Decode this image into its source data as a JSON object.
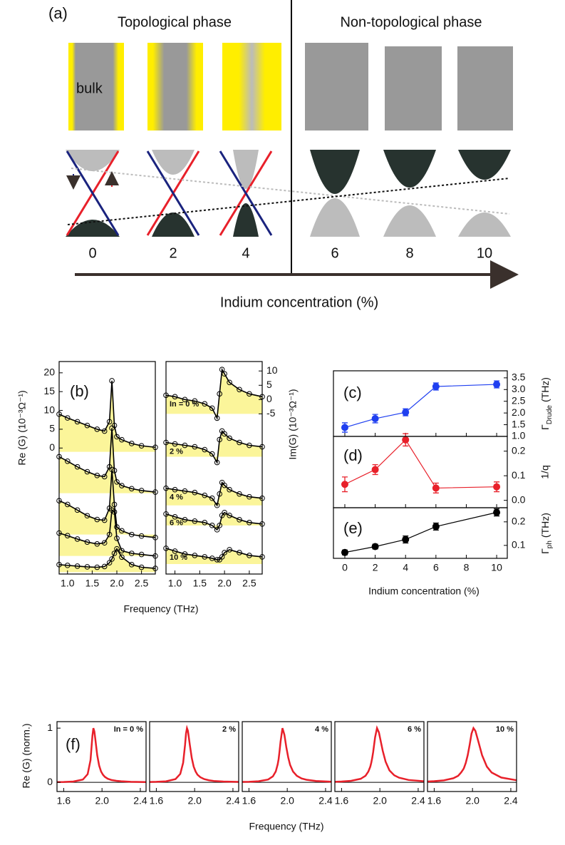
{
  "panel_a": {
    "label": "(a)",
    "left_title": "Topological phase",
    "right_title": "Non-topological phase",
    "bulk_label": "bulk",
    "concentrations": [
      "0",
      "2",
      "4",
      "6",
      "8",
      "10"
    ],
    "axis_label": "Indium concentration (%)"
  },
  "chart_data": [
    {
      "type": "line",
      "label": "(b)",
      "ylabel": "Re (G) (10⁻³Ω⁻¹)",
      "xlabel": "Frequency (THz)",
      "marker": "open-circle",
      "fill_color": "#fbf59a",
      "x": [
        0.83,
        1.0,
        1.2,
        1.4,
        1.6,
        1.75,
        1.85,
        1.9,
        1.95,
        2.0,
        2.1,
        2.3,
        2.5,
        2.78
      ],
      "series": [
        {
          "color": "#000000",
          "fill_to": -1,
          "values": [
            9,
            8,
            7,
            6,
            5,
            4.5,
            7,
            17.9,
            6,
            3,
            2.2,
            1.2,
            0.6,
            0.2
          ]
        },
        {
          "color": "#000000",
          "fill_to": -12,
          "values": [
            -2.3,
            -3.5,
            -5,
            -6.3,
            -7.3,
            -7.6,
            -5,
            5.3,
            -6,
            -9,
            -10,
            -10.8,
            -11.3,
            -11.7
          ]
        },
        {
          "color": "#000000",
          "fill_to": -23,
          "values": [
            -14,
            -15,
            -16.5,
            -18,
            -19,
            -19.2,
            -16,
            -5.7,
            -15,
            -21,
            -22,
            -23,
            -23.4,
            -23.8
          ]
        },
        {
          "color": "#000000",
          "fill_to": -28.7,
          "values": [
            -22.6,
            -23.3,
            -24.2,
            -25,
            -25.5,
            -25.2,
            -23,
            -16.5,
            -17,
            -24,
            -27.3,
            -28,
            -28.3,
            -28.7
          ]
        },
        {
          "color": "#000000",
          "fill_to": -33,
          "values": [
            -31,
            -31.2,
            -31.4,
            -31.6,
            -31.7,
            -31.5,
            -30.5,
            -29.5,
            -28,
            -26.8,
            -29,
            -31,
            -31.7,
            -32
          ]
        }
      ],
      "xlim": [
        0.83,
        2.78
      ],
      "ylim": [
        -33.5,
        23
      ],
      "xticks": [
        {
          "value": 1,
          "label": "1.0"
        },
        1.5,
        {
          "value": 2,
          "label": "2.0"
        },
        2.5
      ],
      "yticks": [
        0,
        5,
        10,
        15,
        20
      ]
    },
    {
      "type": "line",
      "ylabel": "Im(G) (10⁻³Ω⁻¹)",
      "marker": "open-circle",
      "fill_color": "#fbf59a",
      "x": [
        0.82,
        1.0,
        1.2,
        1.4,
        1.6,
        1.75,
        1.85,
        1.9,
        1.95,
        2.0,
        2.1,
        2.3,
        2.5,
        2.76
      ],
      "series": [
        {
          "name": "In = 0 %",
          "color": "#000000",
          "fill_to": -5,
          "values": [
            1.5,
            1,
            0,
            -0.5,
            -1.5,
            -3,
            -6.5,
            2,
            10.5,
            9,
            6,
            3.5,
            2,
            1
          ]
        },
        {
          "name": "2 %",
          "color": "#000000",
          "fill_to": -20,
          "values": [
            -15,
            -15.5,
            -16,
            -16.5,
            -17.5,
            -19,
            -22,
            -14,
            -11,
            -12,
            -13.5,
            -15,
            -16,
            -16.5
          ]
        },
        {
          "name": "4 %",
          "color": "#000000",
          "fill_to": -37,
          "values": [
            -31,
            -31.5,
            -32,
            -32.5,
            -33.5,
            -34.5,
            -37,
            -33,
            -29,
            -30,
            -31.5,
            -33,
            -34,
            -34.5
          ]
        },
        {
          "name": "6 %",
          "color": "#000000",
          "fill_to": -44,
          "values": [
            -40,
            -41,
            -42,
            -42.5,
            -43,
            -44,
            -45.5,
            -44,
            -40.5,
            -39.5,
            -40.5,
            -42,
            -43,
            -43.5
          ]
        },
        {
          "name": "10 %",
          "color": "#000000",
          "fill_to": -57.5,
          "values": [
            -52,
            -53,
            -54,
            -54.5,
            -55,
            -55.5,
            -56,
            -56,
            -55,
            -53.5,
            -52.5,
            -53.5,
            -54.5,
            -55
          ]
        }
      ],
      "xlim": [
        0.82,
        2.76
      ],
      "ylim": [
        -61,
        13.3
      ],
      "xticks": [
        {
          "value": 1,
          "label": "1.0"
        },
        1.5,
        {
          "value": 2,
          "label": "2.0"
        },
        2.5
      ],
      "yticks": [
        -5,
        0,
        5,
        10
      ]
    },
    {
      "type": "line",
      "label": "(c)",
      "ylabel": {
        "symbol": "Γ",
        "sub": "Drude",
        "unit": "(THz)"
      },
      "marker": "circle",
      "x": [
        0,
        2,
        4,
        6,
        10
      ],
      "series": [
        {
          "color": "#1f3ff0",
          "values": [
            1.38,
            1.76,
            2.03,
            3.13,
            3.22
          ],
          "errors": [
            0.2,
            0.18,
            0.15,
            0.15,
            0.15
          ]
        }
      ],
      "xlim": [
        -0.75,
        10.7
      ],
      "ylim": [
        1,
        3.8
      ],
      "xticks": [
        0,
        2,
        4,
        6,
        8,
        10
      ],
      "yticks": [
        {
          "value": 1,
          "label": "1.0"
        },
        1.5,
        {
          "value": 2,
          "label": "2.0"
        },
        2.5,
        {
          "value": 3,
          "label": "3.0"
        },
        3.5
      ]
    },
    {
      "type": "line",
      "label": "(d)",
      "ylabel": "1/q",
      "marker": "circle",
      "x": [
        0,
        2,
        4,
        6,
        10
      ],
      "series": [
        {
          "color": "#e8202a",
          "values": [
            0.065,
            0.125,
            0.246,
            0.05,
            0.055
          ],
          "errors": [
            0.03,
            0.02,
            0.025,
            0.02,
            0.02
          ]
        }
      ],
      "xlim": [
        -0.75,
        10.7
      ],
      "ylim": [
        -0.03,
        0.26
      ],
      "xticks": [
        0,
        2,
        4,
        6,
        8,
        10
      ],
      "yticks": [
        {
          "value": 0,
          "label": "0.0"
        },
        0.1,
        0.2
      ]
    },
    {
      "type": "line",
      "label": "(e)",
      "ylabel": {
        "symbol": "Γ",
        "sub": "ph",
        "unit": "(THz)"
      },
      "xlabel": "Indium concentration (%)",
      "marker": "circle",
      "x": [
        0,
        2,
        4,
        6,
        10
      ],
      "series": [
        {
          "color": "#000000",
          "values": [
            0.07,
            0.095,
            0.125,
            0.18,
            0.24
          ],
          "errors": [
            0.01,
            0.01,
            0.015,
            0.015,
            0.015
          ]
        }
      ],
      "xlim": [
        -0.75,
        10.7
      ],
      "ylim": [
        0.045,
        0.26
      ],
      "xticks": [
        0,
        2,
        4,
        6,
        8,
        10
      ],
      "yticks": [
        0.1,
        0.2
      ]
    },
    {
      "type": "line",
      "label": "(f)",
      "ylabel": "Re (G) (norm.)",
      "xlabel": "Frequency (THz)",
      "zero_line": true,
      "x": [
        1.53,
        1.6,
        1.7,
        1.8,
        1.85,
        1.88,
        1.9,
        1.91,
        1.92,
        1.93,
        1.95,
        1.97,
        1.99,
        2.01,
        2.03,
        2.06,
        2.1,
        2.15,
        2.2,
        2.3,
        2.46
      ],
      "series": [
        {
          "name": "In = 0 %",
          "color": "#e8202a",
          "values": [
            0.004,
            0.006,
            0.014,
            0.05,
            0.15,
            0.41,
            0.86,
            1.0,
            0.94,
            0.8,
            0.5,
            0.31,
            0.2,
            0.14,
            0.1,
            0.066,
            0.042,
            0.027,
            0.019,
            0.01,
            0.005
          ]
        }
      ],
      "xlim": [
        1.53,
        2.46
      ],
      "ylim": [
        -0.17,
        1.12
      ],
      "xticks": [
        1.6,
        {
          "value": 2,
          "label": "2.0"
        },
        2.4
      ],
      "yticks": [
        0,
        1
      ]
    },
    {
      "type": "line",
      "zero_line": true,
      "x": [
        1.53,
        1.6,
        1.7,
        1.8,
        1.85,
        1.88,
        1.9,
        1.91,
        1.92,
        1.93,
        1.95,
        1.97,
        1.99,
        2.01,
        2.03,
        2.06,
        2.1,
        2.15,
        2.2,
        2.3,
        2.46
      ],
      "series": [
        {
          "name": "2 %",
          "color": "#e8202a",
          "values": [
            0.006,
            0.009,
            0.018,
            0.059,
            0.155,
            0.36,
            0.69,
            0.9,
            1.0,
            0.95,
            0.69,
            0.45,
            0.29,
            0.2,
            0.14,
            0.094,
            0.059,
            0.037,
            0.025,
            0.014,
            0.007
          ]
        }
      ],
      "xlim": [
        1.53,
        2.46
      ],
      "ylim": [
        -0.17,
        1.12
      ],
      "xticks": [
        1.6,
        {
          "value": 2,
          "label": "2.0"
        },
        2.4
      ]
    },
    {
      "type": "line",
      "zero_line": true,
      "x": [
        1.53,
        1.6,
        1.7,
        1.8,
        1.85,
        1.88,
        1.9,
        1.91,
        1.92,
        1.93,
        1.95,
        1.97,
        1.99,
        2.01,
        2.03,
        2.06,
        2.1,
        2.15,
        2.2,
        2.3,
        2.46
      ],
      "series": [
        {
          "name": "4 %",
          "color": "#e8202a",
          "values": [
            0.007,
            0.01,
            0.019,
            0.051,
            0.11,
            0.2,
            0.33,
            0.43,
            0.58,
            0.75,
            1.0,
            0.88,
            0.65,
            0.46,
            0.32,
            0.2,
            0.12,
            0.071,
            0.047,
            0.024,
            0.011
          ]
        }
      ],
      "xlim": [
        1.53,
        2.46
      ],
      "ylim": [
        -0.17,
        1.12
      ],
      "xticks": [
        1.6,
        {
          "value": 2,
          "label": "2.0"
        },
        2.4
      ]
    },
    {
      "type": "line",
      "zero_line": true,
      "x": [
        1.53,
        1.6,
        1.7,
        1.8,
        1.85,
        1.88,
        1.9,
        1.91,
        1.92,
        1.93,
        1.95,
        1.97,
        1.99,
        2.01,
        2.03,
        2.06,
        2.1,
        2.15,
        2.2,
        2.3,
        2.46
      ],
      "series": [
        {
          "name": "6 %",
          "color": "#e8202a",
          "values": [
            0.01,
            0.015,
            0.027,
            0.065,
            0.12,
            0.2,
            0.29,
            0.36,
            0.45,
            0.56,
            0.83,
            1.0,
            0.92,
            0.75,
            0.58,
            0.38,
            0.22,
            0.13,
            0.085,
            0.043,
            0.02
          ]
        }
      ],
      "xlim": [
        1.53,
        2.46
      ],
      "ylim": [
        -0.17,
        1.12
      ],
      "xticks": [
        1.6,
        {
          "value": 2,
          "label": "2.0"
        },
        2.4
      ]
    },
    {
      "type": "line",
      "zero_line": true,
      "x": [
        1.53,
        1.6,
        1.7,
        1.8,
        1.85,
        1.88,
        1.9,
        1.91,
        1.92,
        1.93,
        1.95,
        1.97,
        1.99,
        2.01,
        2.03,
        2.06,
        2.1,
        2.15,
        2.2,
        2.3,
        2.46
      ],
      "series": [
        {
          "name": "10 %",
          "color": "#e8202a",
          "values": [
            0.015,
            0.021,
            0.036,
            0.075,
            0.12,
            0.18,
            0.23,
            0.26,
            0.31,
            0.36,
            0.5,
            0.69,
            0.9,
            1.0,
            0.95,
            0.76,
            0.5,
            0.29,
            0.18,
            0.088,
            0.038
          ]
        }
      ],
      "xlim": [
        1.53,
        2.46
      ],
      "ylim": [
        -0.17,
        1.12
      ],
      "xticks": [
        1.6,
        {
          "value": 2,
          "label": "2.0"
        },
        2.4
      ]
    }
  ]
}
